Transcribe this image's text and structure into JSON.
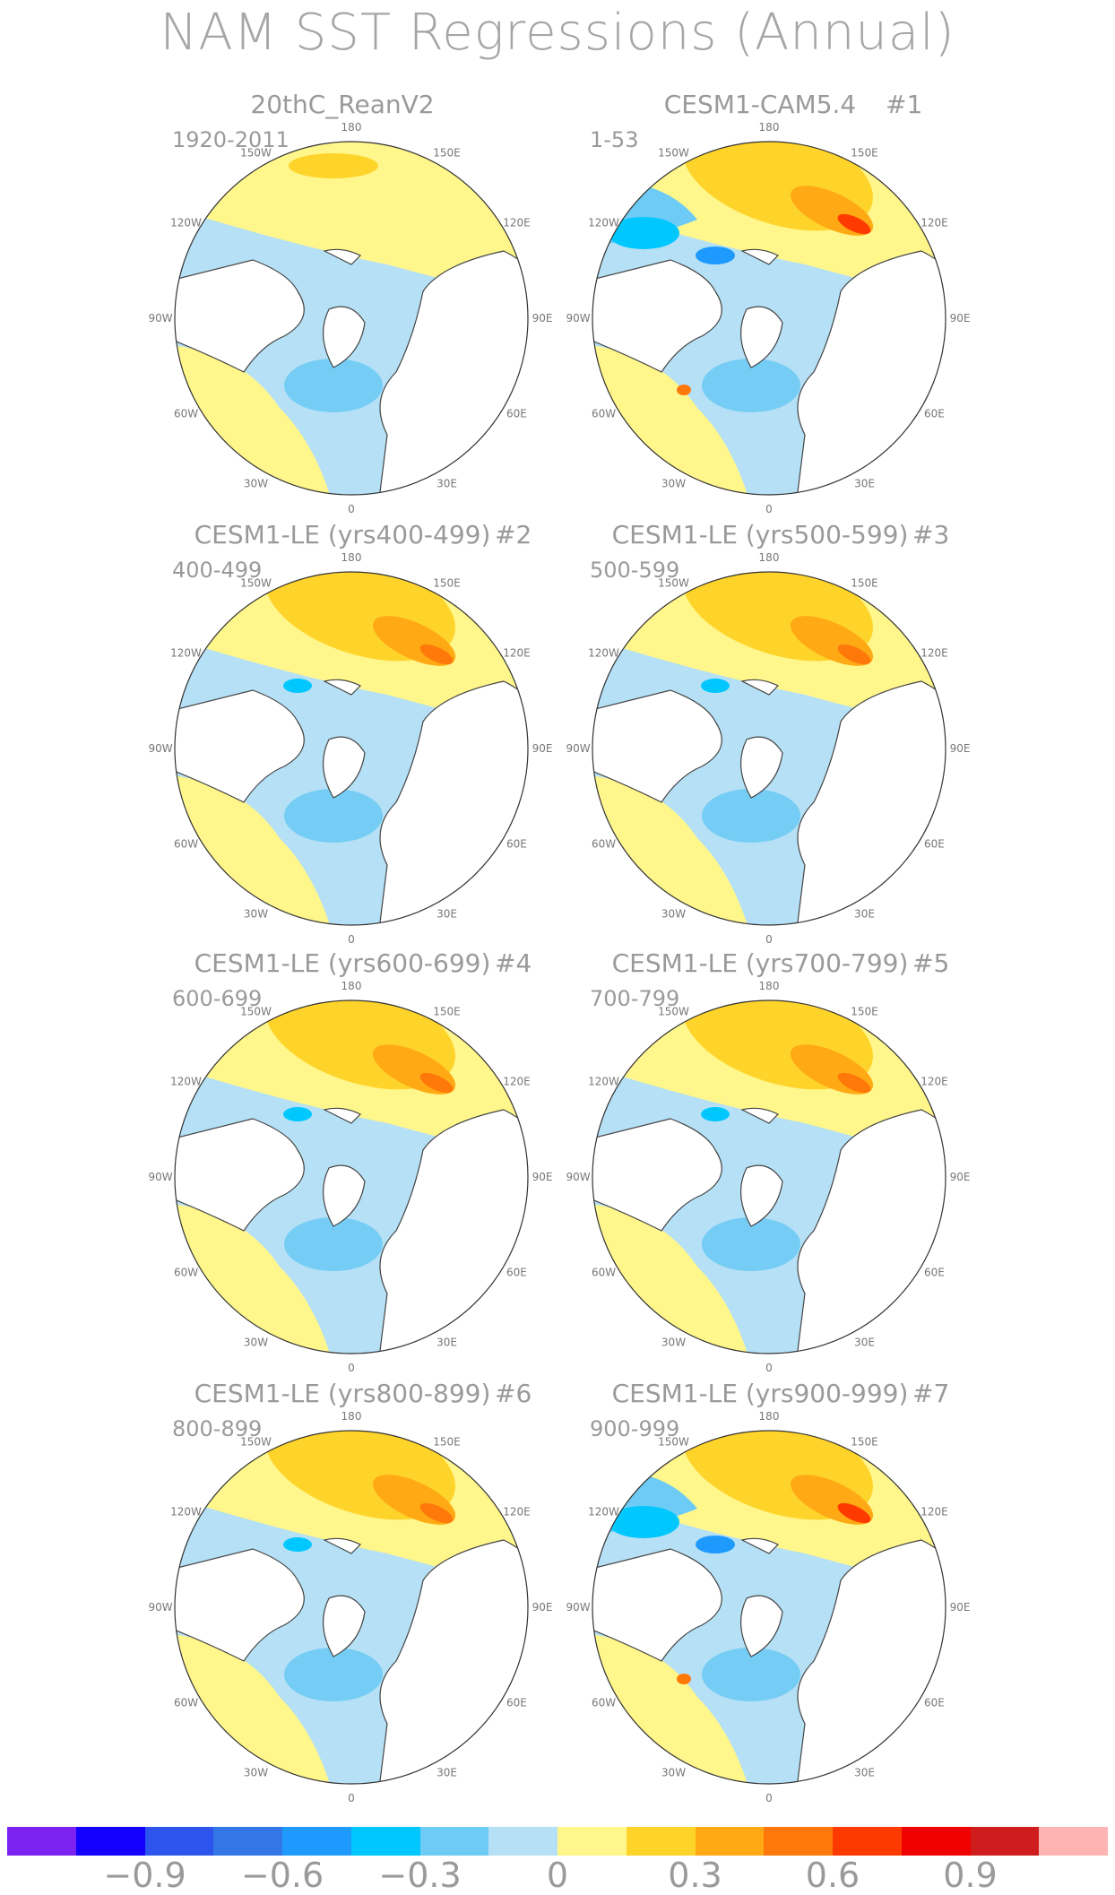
{
  "title": "NAM SST Regressions (Annual)",
  "lon_labels": [
    "180",
    "150E",
    "120E",
    "90E",
    "60E",
    "30E",
    "0",
    "30W",
    "60W",
    "90W",
    "120W",
    "150W"
  ],
  "panels": [
    {
      "title": "20thC_ReanV2",
      "number": "",
      "years": "1920-2011",
      "pattern": "weak"
    },
    {
      "title": "CESM1-CAM5.4",
      "number": "#1",
      "years": "1-53",
      "pattern": "strong"
    },
    {
      "title": "CESM1-LE (yrs400-499)",
      "number": "#2",
      "years": "400-499",
      "pattern": "moderate"
    },
    {
      "title": "CESM1-LE (yrs500-599)",
      "number": "#3",
      "years": "500-599",
      "pattern": "moderate"
    },
    {
      "title": "CESM1-LE (yrs600-699)",
      "number": "#4",
      "years": "600-699",
      "pattern": "moderate"
    },
    {
      "title": "CESM1-LE (yrs700-799)",
      "number": "#5",
      "years": "700-799",
      "pattern": "moderate"
    },
    {
      "title": "CESM1-LE (yrs800-899)",
      "number": "#6",
      "years": "800-899",
      "pattern": "moderate"
    },
    {
      "title": "CESM1-LE (yrs900-999)",
      "number": "#7",
      "years": "900-999",
      "pattern": "strong"
    }
  ],
  "colorbar": {
    "colors": [
      "#7b22f0",
      "#1400ff",
      "#2d55ee",
      "#3277e5",
      "#1e9aff",
      "#00c8ff",
      "#6ecbf5",
      "#b5e0f5",
      "#fff68c",
      "#ffd42a",
      "#ffaa14",
      "#ff780a",
      "#ff3a00",
      "#f00000",
      "#cf1d1d",
      "#ffb4b4"
    ],
    "ticks": [
      "−0.9",
      "−0.6",
      "−0.3",
      "0",
      "0.3",
      "0.6",
      "0.9"
    ]
  }
}
